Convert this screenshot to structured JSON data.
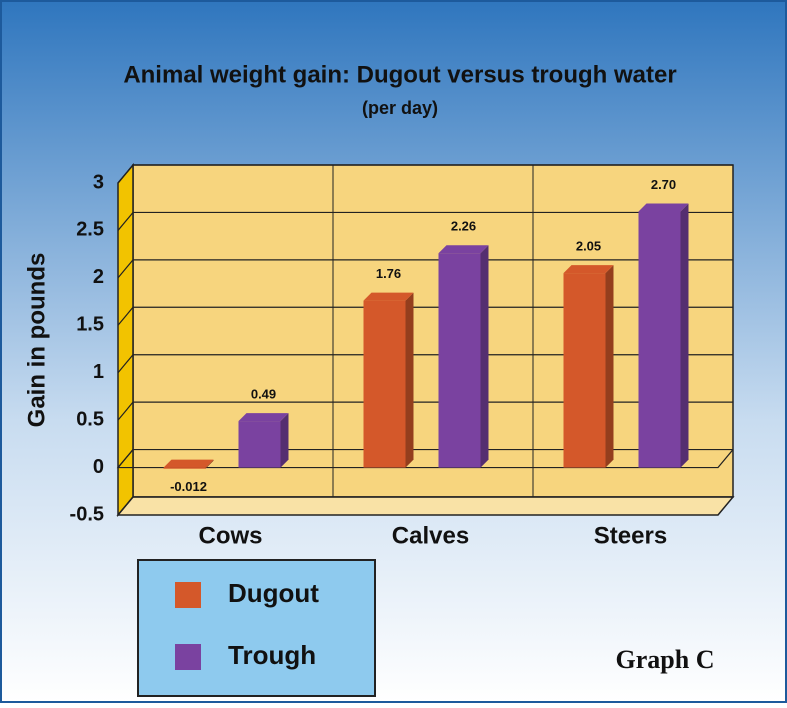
{
  "chart_data": {
    "type": "bar3d",
    "title": "Animal weight gain: Dugout versus trough water",
    "subtitle": "(per day)",
    "y_label": "Gain in pounds",
    "categories": [
      "Cows",
      "Calves",
      "Steers"
    ],
    "series": [
      {
        "name": "Dugout",
        "color": "#d4582a",
        "values": [
          -0.012,
          1.76,
          2.05
        ],
        "value_labels": [
          "-0.012",
          "1.76",
          "2.05"
        ]
      },
      {
        "name": "Trough",
        "color": "#7a42a0",
        "values": [
          0.49,
          2.26,
          2.7
        ],
        "value_labels": [
          "0.49",
          "2.26",
          "2.70"
        ]
      }
    ],
    "ylim": [
      -0.5,
      3
    ],
    "yticks": [
      -0.5,
      0,
      0.5,
      1,
      1.5,
      2,
      2.5,
      3
    ],
    "grid": true,
    "legend": "bottom-left",
    "annotation": "Graph C"
  }
}
